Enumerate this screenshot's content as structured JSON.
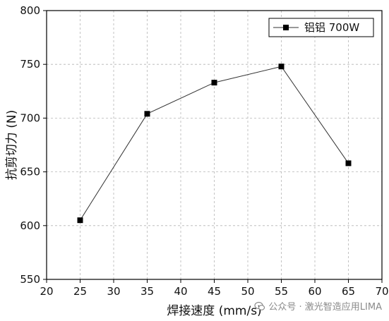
{
  "chart_data": {
    "type": "line",
    "xlabel": "焊接速度 (mm/s)",
    "ylabel": "抗剪切力 (N)",
    "xlim": [
      20,
      70
    ],
    "ylim": [
      550,
      800
    ],
    "xticks": [
      20,
      25,
      30,
      35,
      40,
      45,
      50,
      55,
      60,
      65,
      70
    ],
    "yticks": [
      550,
      600,
      650,
      700,
      750,
      800
    ],
    "grid": true,
    "legend_position": "top-right",
    "series": [
      {
        "name": "铝铝 700W",
        "marker": "square",
        "color": "#000000",
        "x": [
          25,
          35,
          45,
          55,
          65
        ],
        "y": [
          605,
          704,
          733,
          748,
          658
        ]
      }
    ]
  },
  "watermark": {
    "text": "公众号 · 激光智造应用LIMA",
    "icon": "wechat-icon"
  }
}
